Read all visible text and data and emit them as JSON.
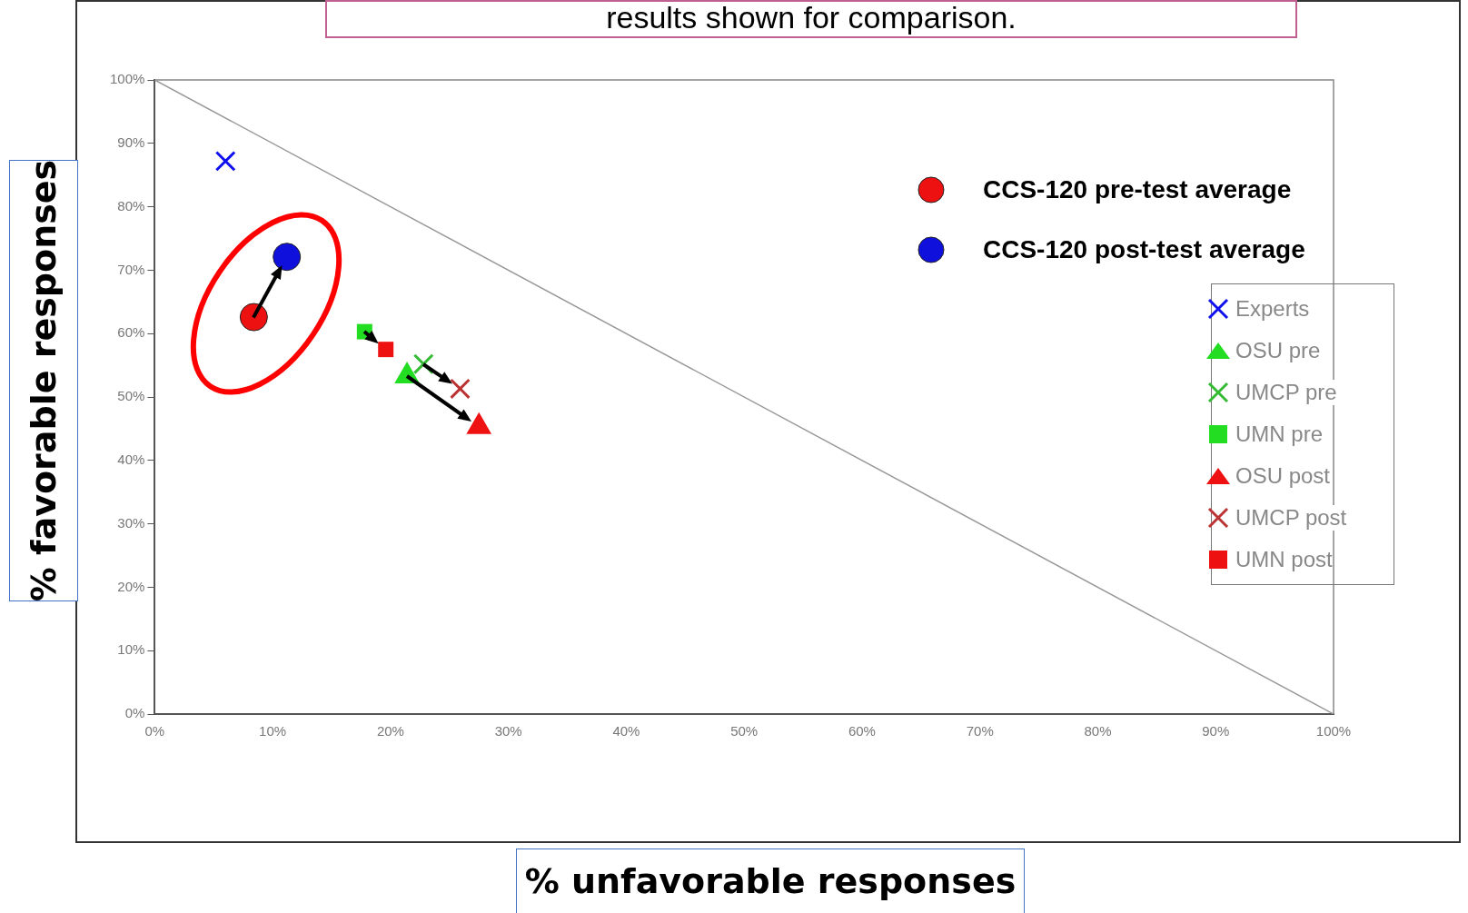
{
  "chart_data": {
    "type": "scatter",
    "title": "results shown for comparison.",
    "xlabel": "% unfavorable responses",
    "ylabel": "% favorable responses",
    "xlim": [
      0,
      100
    ],
    "ylim": [
      0,
      100
    ],
    "xticks": [
      {
        "value": 0,
        "label": "0%"
      },
      {
        "value": 10,
        "label": "10%"
      },
      {
        "value": 20,
        "label": "20%"
      },
      {
        "value": 30,
        "label": "30%"
      },
      {
        "value": 40,
        "label": "40%"
      },
      {
        "value": 50,
        "label": "50%"
      },
      {
        "value": 60,
        "label": "60%"
      },
      {
        "value": 70,
        "label": "70%"
      },
      {
        "value": 80,
        "label": "80%"
      },
      {
        "value": 90,
        "label": "90%"
      },
      {
        "value": 100,
        "label": "100%"
      }
    ],
    "yticks": [
      {
        "value": 0,
        "label": "0%"
      },
      {
        "value": 10,
        "label": "10%"
      },
      {
        "value": 20,
        "label": "20%"
      },
      {
        "value": 30,
        "label": "30%"
      },
      {
        "value": 40,
        "label": "40%"
      },
      {
        "value": 50,
        "label": "50%"
      },
      {
        "value": 60,
        "label": "60%"
      },
      {
        "value": 70,
        "label": "70%"
      },
      {
        "value": 80,
        "label": "80%"
      },
      {
        "value": 90,
        "label": "90%"
      },
      {
        "value": 100,
        "label": "100%"
      }
    ],
    "legend": "right",
    "series": [
      {
        "name": "CCS-120 pre-test average",
        "color": "#ee1111",
        "marker": "circle",
        "x": [
          8.4
        ],
        "values": [
          62.6
        ]
      },
      {
        "name": "CCS-120 post-test average",
        "color": "#1010dd",
        "marker": "circle",
        "x": [
          11.2
        ],
        "values": [
          72.1
        ]
      },
      {
        "name": "Experts",
        "color": "#1010ee",
        "marker": "cross",
        "x": [
          6.0
        ],
        "values": [
          87.2
        ]
      },
      {
        "name": "OSU pre",
        "color": "#22dd22",
        "marker": "triangle",
        "x": [
          21.4
        ],
        "values": [
          53.3
        ]
      },
      {
        "name": "UMCP pre",
        "color": "#33bb33",
        "marker": "cross",
        "x": [
          22.8
        ],
        "values": [
          55.2
        ]
      },
      {
        "name": "UMN pre",
        "color": "#22dd22",
        "marker": "square",
        "x": [
          17.8
        ],
        "values": [
          60.3
        ]
      },
      {
        "name": "OSU post",
        "color": "#ee1111",
        "marker": "triangle",
        "x": [
          27.5
        ],
        "values": [
          45.3
        ]
      },
      {
        "name": "UMCP post",
        "color": "#bb3333",
        "marker": "cross",
        "x": [
          25.9
        ],
        "values": [
          51.3
        ]
      },
      {
        "name": "UMN post",
        "color": "#ee1111",
        "marker": "square",
        "x": [
          19.6
        ],
        "values": [
          57.5
        ]
      },
      {
        "type": "line",
        "color": "#999999",
        "marker": "none",
        "x": [
          0,
          100
        ],
        "values": [
          100,
          0
        ]
      }
    ]
  }
}
